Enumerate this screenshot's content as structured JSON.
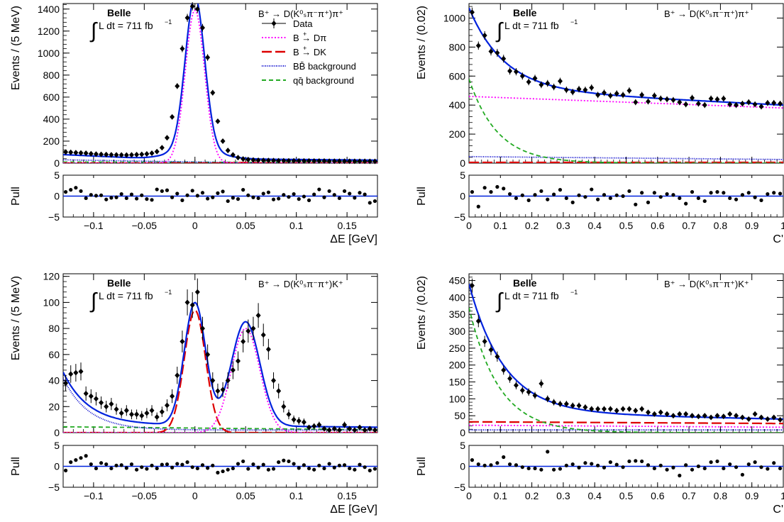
{
  "common": {
    "belle": "Belle",
    "lumi_integral": "∫",
    "lumi": "L dt = 711 fb",
    "lumi_exp": "−1",
    "pull_label": "Pull",
    "pull_yticks": [
      "5",
      "0",
      "−5"
    ]
  },
  "legend": {
    "items": [
      {
        "label": "Data",
        "sup": "",
        "color": "#000000",
        "style": "data"
      },
      {
        "label": "B → Dπ",
        "sup": "+",
        "color": "#ff00ff",
        "style": "dotted"
      },
      {
        "label": "B → DK",
        "sup": "+",
        "color": "#dd0000",
        "style": "longdash"
      },
      {
        "label": "BB̄ background",
        "sup": "",
        "color": "#0000cc",
        "style": "finedot"
      },
      {
        "label": "qq̄ background",
        "sup": "",
        "color": "#22aa22",
        "style": "dashed"
      }
    ]
  },
  "chart_data": [
    {
      "id": "de_dpi",
      "type": "scatter",
      "decay": "B⁺ → D(K⁰ₛπ⁻π⁺)π⁺",
      "xlabel": "ΔE [GeV]",
      "ylabel": "Events / (5 MeV)",
      "xlim": [
        -0.13,
        0.18
      ],
      "ylim": [
        0,
        1450
      ],
      "xticks": [
        "−0.1",
        "−0.05",
        "0",
        "0.05",
        "0.1",
        "0.15"
      ],
      "xtick_vals": [
        -0.1,
        -0.05,
        0,
        0.05,
        0.1,
        0.15
      ],
      "yticks": [
        0,
        200,
        400,
        600,
        800,
        1000,
        1200,
        1400
      ],
      "data_x": [
        -0.1275,
        -0.1225,
        -0.1175,
        -0.1125,
        -0.1075,
        -0.1025,
        -0.0975,
        -0.0925,
        -0.0875,
        -0.0825,
        -0.0775,
        -0.0725,
        -0.0675,
        -0.0625,
        -0.0575,
        -0.0525,
        -0.0475,
        -0.0425,
        -0.0375,
        -0.0325,
        -0.0275,
        -0.0225,
        -0.0175,
        -0.0125,
        -0.0075,
        -0.0025,
        0.0025,
        0.0075,
        0.0125,
        0.0175,
        0.0225,
        0.0275,
        0.0325,
        0.0375,
        0.0425,
        0.0475,
        0.0525,
        0.0575,
        0.0625,
        0.0675,
        0.0725,
        0.0775,
        0.0825,
        0.0875,
        0.0925,
        0.0975,
        0.1025,
        0.1075,
        0.1125,
        0.1175,
        0.1225,
        0.1275,
        0.1325,
        0.1375,
        0.1425,
        0.1475,
        0.1525,
        0.1575,
        0.1625,
        0.1675,
        0.1725,
        0.1775
      ],
      "data_y": [
        101,
        98,
        95,
        93,
        90,
        85,
        82,
        80,
        78,
        76,
        75,
        74,
        73,
        75,
        77,
        80,
        84,
        90,
        105,
        140,
        230,
        420,
        700,
        1040,
        1320,
        1425,
        1400,
        1230,
        960,
        640,
        380,
        200,
        115,
        75,
        50,
        38,
        32,
        28,
        26,
        25,
        24,
        23,
        22,
        22,
        21,
        21,
        20,
        20,
        20,
        19,
        19,
        19,
        18,
        18,
        18,
        18,
        17,
        17,
        17,
        17,
        16,
        16
      ],
      "pull": [
        1.0,
        1.5,
        2.0,
        1.2,
        -0.5,
        0.3,
        0.1,
        0.2,
        -0.8,
        -0.4,
        -0.3,
        0.5,
        -0.5,
        0.4,
        -0.6,
        0.2,
        -0.7,
        -0.9,
        1.6,
        1.2,
        1.4,
        -0.3,
        0.6,
        -1.0,
        0.2,
        1.3,
        0.1,
        0.8,
        -0.6,
        -0.3,
        0.7,
        1.1,
        -1.2,
        -0.4,
        -0.7,
        1.5,
        0.2,
        -0.3,
        -0.5,
        0.6,
        0.9,
        -0.8,
        -0.6,
        0.3,
        -0.2,
        0.5,
        -0.7,
        -0.1,
        -1.0,
        0.4,
        1.6,
        -0.3,
        1.2,
        0.3,
        -0.5,
        1.2,
        0.6,
        -0.4,
        0.8,
        0.4,
        -1.6,
        -1.2
      ],
      "curves": [
        {
          "name": "qqbar",
          "color": "#22aa22",
          "style": "dashed",
          "kind": "qq",
          "params": {
            "a": 10,
            "b": 3
          }
        },
        {
          "name": "bbbar",
          "color": "#0000cc",
          "style": "finedot",
          "kind": "bb",
          "params": {
            "a": 30,
            "b": 22
          }
        },
        {
          "name": "dk",
          "color": "#dd0000",
          "style": "longdash",
          "kind": "gauss",
          "params": {
            "A": 5,
            "mu": 0.049,
            "sigma": 0.011
          }
        },
        {
          "name": "dpi",
          "color": "#ff00ff",
          "style": "dotted",
          "kind": "gauss",
          "params": {
            "A": 1390,
            "mu": 0.0,
            "sigma": 0.0095
          }
        },
        {
          "name": "total",
          "color": "#0022dd",
          "style": "solid",
          "kind": "total",
          "params": {
            "A": 1390,
            "mu": 0.0,
            "sigma": 0.0095,
            "bg": 40,
            "slope": 60,
            "tail": 20
          }
        }
      ]
    },
    {
      "id": "cp_dpi",
      "type": "scatter",
      "decay": "B⁺ → D(K⁰ₛπ⁻π⁺)π⁺",
      "xlabel": "C'",
      "ylabel": "Events / (0.02)",
      "xlim": [
        0,
        1
      ],
      "ylim": [
        0,
        1100
      ],
      "xticks": [
        "0",
        "0.1",
        "0.2",
        "0.3",
        "0.4",
        "0.5",
        "0.6",
        "0.7",
        "0.8",
        "0.9",
        "1"
      ],
      "xtick_vals": [
        0,
        0.1,
        0.2,
        0.3,
        0.4,
        0.5,
        0.6,
        0.7,
        0.8,
        0.9,
        1.0
      ],
      "yticks": [
        0,
        200,
        400,
        600,
        800,
        1000
      ],
      "data_x": [
        0.01,
        0.03,
        0.05,
        0.07,
        0.09,
        0.11,
        0.13,
        0.15,
        0.17,
        0.19,
        0.21,
        0.23,
        0.25,
        0.27,
        0.29,
        0.31,
        0.33,
        0.35,
        0.37,
        0.39,
        0.41,
        0.43,
        0.45,
        0.47,
        0.49,
        0.51,
        0.53,
        0.55,
        0.57,
        0.59,
        0.61,
        0.63,
        0.65,
        0.67,
        0.69,
        0.71,
        0.73,
        0.75,
        0.77,
        0.79,
        0.81,
        0.83,
        0.85,
        0.87,
        0.89,
        0.91,
        0.93,
        0.95,
        0.97,
        0.99
      ],
      "data_y": [
        1040,
        810,
        880,
        770,
        760,
        720,
        635,
        630,
        600,
        560,
        585,
        540,
        550,
        525,
        565,
        505,
        490,
        510,
        505,
        520,
        470,
        485,
        465,
        480,
        470,
        500,
        420,
        470,
        425,
        465,
        445,
        440,
        435,
        420,
        405,
        450,
        410,
        400,
        445,
        440,
        445,
        405,
        400,
        410,
        420,
        405,
        390,
        415,
        415,
        410
      ],
      "pull": [
        1.0,
        -2.5,
        2.0,
        1.0,
        2.2,
        1.8,
        0.5,
        -0.5,
        0.2,
        -1.0,
        0.3,
        1.2,
        -0.8,
        0.4,
        1.5,
        -0.5,
        -1.5,
        0.2,
        -0.2,
        1.6,
        -0.8,
        0.3,
        -0.5,
        0.2,
        0.0,
        1.2,
        -2.0,
        0.8,
        -1.5,
        0.8,
        -0.2,
        0.5,
        0.3,
        -0.5,
        -1.8,
        1.0,
        -0.5,
        -1.2,
        0.8,
        1.0,
        0.8,
        -0.5,
        -0.8,
        0.3,
        0.8,
        -0.3,
        -1.0,
        0.5,
        0.8,
        0.6
      ],
      "curves": [
        {
          "name": "dk",
          "color": "#dd0000",
          "style": "longdash",
          "kind": "flat",
          "params": {
            "c": 5
          }
        },
        {
          "name": "bbbar",
          "color": "#0000cc",
          "style": "finedot",
          "kind": "lin",
          "params": {
            "c": 45,
            "s": -20
          }
        },
        {
          "name": "qqbar",
          "color": "#22aa22",
          "style": "dashed",
          "kind": "exp",
          "params": {
            "A": 580,
            "k": 11
          }
        },
        {
          "name": "dpi",
          "color": "#ff00ff",
          "style": "dotted",
          "kind": "lin",
          "params": {
            "c": 460,
            "s": -80
          }
        },
        {
          "name": "total",
          "color": "#0022dd",
          "style": "solid",
          "kind": "cptot",
          "params": {
            "c": 510,
            "s": -110,
            "A": 560,
            "k": 9
          }
        }
      ]
    },
    {
      "id": "de_dk",
      "type": "scatter",
      "decay": "B⁺ → D(K⁰ₛπ⁻π⁺)K⁺",
      "xlabel": "ΔE [GeV]",
      "ylabel": "Events / (5 MeV)",
      "xlim": [
        -0.13,
        0.18
      ],
      "ylim": [
        0,
        122
      ],
      "xticks": [
        "−0.1",
        "−0.05",
        "0",
        "0.05",
        "0.1",
        "0.15"
      ],
      "xtick_vals": [
        -0.1,
        -0.05,
        0,
        0.05,
        0.1,
        0.15
      ],
      "yticks": [
        0,
        20,
        40,
        60,
        80,
        100,
        120
      ],
      "data_x": [
        -0.1275,
        -0.1225,
        -0.1175,
        -0.1125,
        -0.1075,
        -0.1025,
        -0.0975,
        -0.0925,
        -0.0875,
        -0.0825,
        -0.0775,
        -0.0725,
        -0.0675,
        -0.0625,
        -0.0575,
        -0.0525,
        -0.0475,
        -0.0425,
        -0.0375,
        -0.0325,
        -0.0275,
        -0.0225,
        -0.0175,
        -0.0125,
        -0.0075,
        -0.0025,
        0.0025,
        0.0075,
        0.0125,
        0.0175,
        0.0225,
        0.0275,
        0.0325,
        0.0375,
        0.0425,
        0.0475,
        0.0525,
        0.0575,
        0.0625,
        0.0675,
        0.0725,
        0.0775,
        0.0825,
        0.0875,
        0.0925,
        0.0975,
        0.1025,
        0.1075,
        0.1125,
        0.1175,
        0.1225,
        0.1275,
        0.1325,
        0.1375,
        0.1425,
        0.1475,
        0.1525,
        0.1575,
        0.1625,
        0.1675,
        0.1725,
        0.1775
      ],
      "data_y": [
        38,
        45,
        46,
        47,
        30,
        28,
        26,
        23,
        20,
        22,
        18,
        15,
        17,
        14,
        14,
        13,
        15,
        17,
        12,
        16,
        21,
        28,
        44,
        70,
        100,
        98,
        108,
        80,
        60,
        40,
        32,
        33,
        40,
        48,
        55,
        70,
        78,
        80,
        90,
        75,
        64,
        40,
        32,
        20,
        14,
        10,
        9,
        8,
        4,
        5,
        6,
        3,
        2,
        3,
        2,
        6,
        3,
        2,
        4,
        2,
        3,
        2
      ],
      "pull": [
        -1.0,
        1.0,
        1.5,
        2.0,
        2.5,
        0.5,
        -0.5,
        0.8,
        0.5,
        -0.5,
        0.2,
        0.3,
        -0.4,
        0.5,
        -0.8,
        -0.2,
        -0.6,
        0.2,
        -0.5,
        0.4,
        0.5,
        -0.3,
        0.6,
        0.4,
        1.0,
        -0.2,
        -0.5,
        0.3,
        -0.4,
        0.2,
        -1.5,
        -1.2,
        -0.8,
        -0.5,
        0.6,
        1.2,
        -0.6,
        0.5,
        -0.3,
        0.4,
        -0.8,
        -0.6,
        1.0,
        1.4,
        1.2,
        0.6,
        -0.4,
        0.3,
        -0.5,
        -0.8,
        0.2,
        -0.5,
        0.6,
        -0.3,
        0.2,
        0.3,
        -0.5,
        -0.8,
        0.4,
        -0.2,
        -1.0,
        -0.6
      ],
      "curves": [
        {
          "name": "qqbar",
          "color": "#22aa22",
          "style": "dashed",
          "kind": "qq",
          "params": {
            "a": 4.5,
            "b": 1.5
          }
        },
        {
          "name": "bbbar",
          "color": "#0000cc",
          "style": "finedot",
          "kind": "bbexp",
          "params": {
            "A": 40,
            "k": 40,
            "c": 2
          }
        },
        {
          "name": "dk",
          "color": "#dd0000",
          "style": "longdash",
          "kind": "gauss",
          "params": {
            "A": 94,
            "mu": 0.0,
            "sigma": 0.0105
          }
        },
        {
          "name": "dpi",
          "color": "#ff00ff",
          "style": "dotted",
          "kind": "gauss",
          "params": {
            "A": 80,
            "mu": 0.05,
            "sigma": 0.014
          }
        },
        {
          "name": "total",
          "color": "#0022dd",
          "style": "solid",
          "kind": "dktot",
          "params": {}
        }
      ]
    },
    {
      "id": "cp_dk",
      "type": "scatter",
      "decay": "B⁺ → D(K⁰ₛπ⁻π⁺)K⁺",
      "xlabel": "C'",
      "ylabel": "Events / (0.02)",
      "xlim": [
        0,
        1
      ],
      "ylim": [
        0,
        470
      ],
      "xticks": [
        "0",
        "0.1",
        "0.2",
        "0.3",
        "0.4",
        "0.5",
        "0.6",
        "0.7",
        "0.8",
        "0.9",
        "1"
      ],
      "xtick_vals": [
        0,
        0.1,
        0.2,
        0.3,
        0.4,
        0.5,
        0.6,
        0.7,
        0.8,
        0.9,
        1.0
      ],
      "yticks": [
        0,
        50,
        100,
        150,
        200,
        250,
        300,
        350,
        400,
        450
      ],
      "data_x": [
        0.01,
        0.03,
        0.05,
        0.07,
        0.09,
        0.11,
        0.13,
        0.15,
        0.17,
        0.19,
        0.21,
        0.23,
        0.25,
        0.27,
        0.29,
        0.31,
        0.33,
        0.35,
        0.37,
        0.39,
        0.41,
        0.43,
        0.45,
        0.47,
        0.49,
        0.51,
        0.53,
        0.55,
        0.57,
        0.59,
        0.61,
        0.63,
        0.65,
        0.67,
        0.69,
        0.71,
        0.73,
        0.75,
        0.77,
        0.79,
        0.81,
        0.83,
        0.85,
        0.87,
        0.89,
        0.91,
        0.93,
        0.95,
        0.97,
        0.99
      ],
      "data_y": [
        435,
        330,
        270,
        245,
        225,
        185,
        160,
        140,
        125,
        120,
        110,
        145,
        100,
        90,
        85,
        85,
        80,
        80,
        75,
        70,
        70,
        70,
        70,
        65,
        70,
        70,
        65,
        70,
        60,
        55,
        60,
        55,
        50,
        55,
        55,
        50,
        48,
        50,
        45,
        50,
        48,
        55,
        50,
        45,
        40,
        55,
        45,
        40,
        45,
        38
      ],
      "pull": [
        1.5,
        0.5,
        0.2,
        0.3,
        0.8,
        2.2,
        0.5,
        0.3,
        -0.2,
        -0.5,
        -0.5,
        -0.8,
        3.5,
        -0.8,
        -0.6,
        0.2,
        0.5,
        -0.3,
        0.8,
        0.6,
        0.2,
        -0.3,
        1.0,
        0.4,
        -0.2,
        1.2,
        1.3,
        1.2,
        0.3,
        -0.5,
        0.2,
        -0.8,
        -0.3,
        -2.2,
        0.3,
        -0.8,
        0.0,
        -0.5,
        1.0,
        1.2,
        -0.5,
        0.5,
        -0.2,
        -2.0,
        0.5,
        1.0,
        -0.2,
        -0.6,
        0.8,
        -0.5
      ],
      "curves": [
        {
          "name": "bbbar",
          "color": "#0000cc",
          "style": "finedot",
          "kind": "flat",
          "params": {
            "c": 8
          }
        },
        {
          "name": "dpi",
          "color": "#ff00ff",
          "style": "dotted",
          "kind": "lin",
          "params": {
            "c": 22,
            "s": -6
          }
        },
        {
          "name": "dk",
          "color": "#dd0000",
          "style": "longdash",
          "kind": "lin",
          "params": {
            "c": 32,
            "s": -5
          }
        },
        {
          "name": "qqbar",
          "color": "#22aa22",
          "style": "dashed",
          "kind": "exp",
          "params": {
            "A": 370,
            "k": 10.5
          }
        },
        {
          "name": "total",
          "color": "#0022dd",
          "style": "solid",
          "kind": "cptot",
          "params": {
            "c": 60,
            "s": -20,
            "A": 380,
            "k": 9
          }
        }
      ]
    }
  ]
}
